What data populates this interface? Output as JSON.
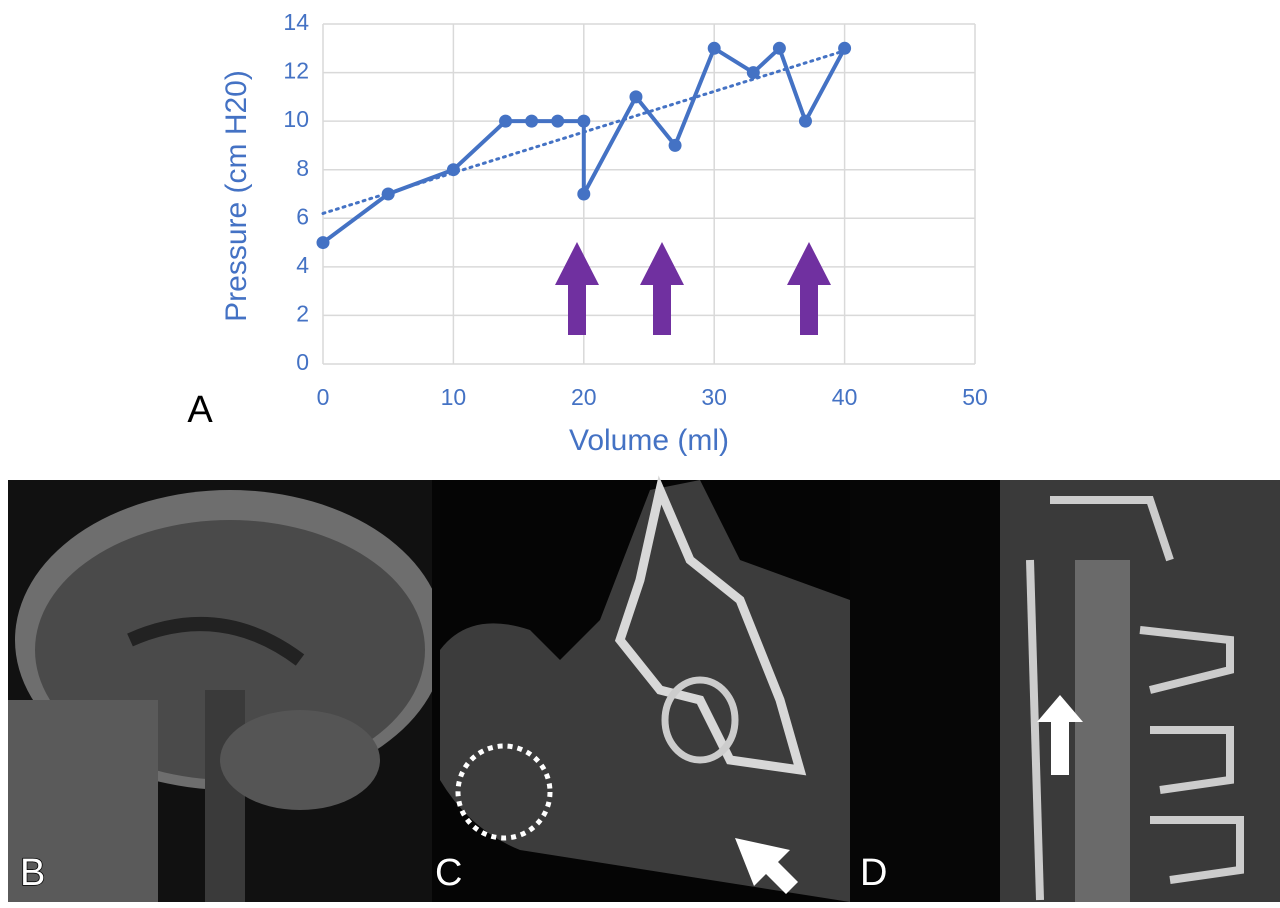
{
  "chart_data": {
    "type": "line",
    "panel_label": "A",
    "xlabel": "Volume (ml)",
    "ylabel": "Pressure (cm H20)",
    "x": [
      0,
      5,
      10,
      14,
      16,
      18,
      20,
      20,
      24,
      27,
      30,
      33,
      35,
      37,
      40
    ],
    "series": [
      {
        "color": "#4472c4",
        "values": [
          5,
          7,
          8,
          10,
          10,
          10,
          10,
          7,
          11,
          9,
          13,
          12,
          13,
          10,
          13
        ]
      }
    ],
    "trendline": {
      "x": [
        0,
        40
      ],
      "values": [
        6.2,
        12.9
      ],
      "color": "#4472c4",
      "style": "dotted"
    },
    "xlim": [
      0,
      50
    ],
    "xticks": [
      0,
      10,
      20,
      30,
      40,
      50
    ],
    "ylim": [
      0,
      14
    ],
    "yticks": [
      0,
      2,
      4,
      6,
      8,
      10,
      12,
      14
    ],
    "grid": true
  },
  "panels": [
    {
      "label": "B"
    },
    {
      "label": "C"
    },
    {
      "label": "D"
    }
  ]
}
